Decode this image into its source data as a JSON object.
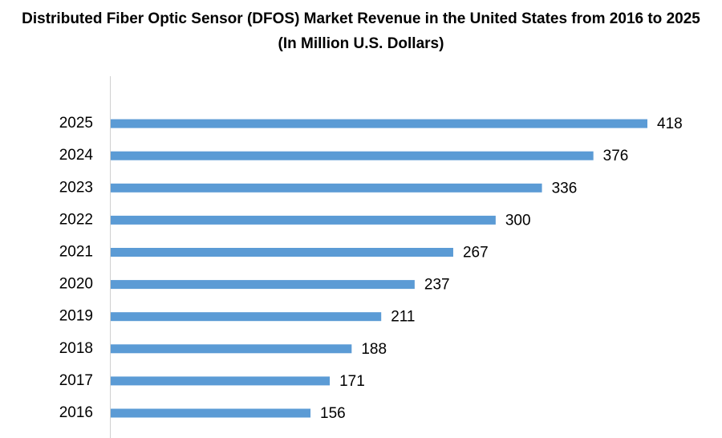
{
  "chart_data": {
    "type": "bar",
    "orientation": "horizontal",
    "title": "Distributed Fiber Optic Sensor (DFOS) Market Revenue in the United States from 2016 to 2025 (In Million U.S. Dollars)",
    "categories": [
      "2016",
      "2017",
      "2018",
      "2019",
      "2020",
      "2021",
      "2022",
      "2023",
      "2024",
      "2025"
    ],
    "values": [
      156,
      171,
      188,
      211,
      237,
      267,
      300,
      336,
      376,
      418
    ],
    "color": "#5b9bd5"
  }
}
